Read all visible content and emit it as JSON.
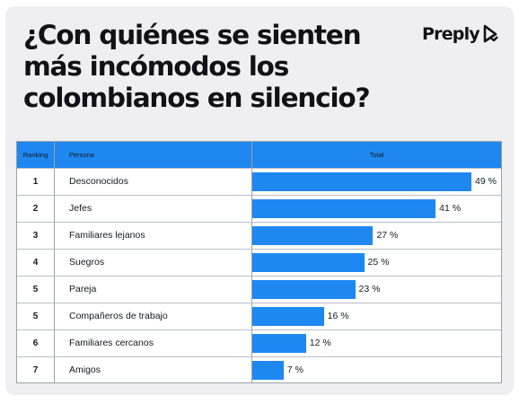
{
  "title": "¿Con quiénes se sienten más incómodos los colombianos en silencio?",
  "brand": "Preply",
  "colors": {
    "accent": "#1e88f0",
    "background": "#efeff2",
    "text": "#121117"
  },
  "table": {
    "headers": {
      "ranking": "Ranking",
      "persona": "Persona",
      "total": "Total"
    }
  },
  "chart_data": {
    "type": "bar",
    "orientation": "horizontal",
    "value_suffix": " %",
    "rows": [
      {
        "ranking": "1",
        "persona": "Desconocidos",
        "value": 49
      },
      {
        "ranking": "2",
        "persona": "Jefes",
        "value": 41
      },
      {
        "ranking": "3",
        "persona": "Familiares lejanos",
        "value": 27
      },
      {
        "ranking": "4",
        "persona": "Suegros",
        "value": 25
      },
      {
        "ranking": "5",
        "persona": "Pareja",
        "value": 23
      },
      {
        "ranking": "5",
        "persona": "Compañeros de trabajo",
        "value": 16
      },
      {
        "ranking": "6",
        "persona": "Familiares cercanos",
        "value": 12
      },
      {
        "ranking": "7",
        "persona": "Amigos",
        "value": 7
      }
    ]
  }
}
